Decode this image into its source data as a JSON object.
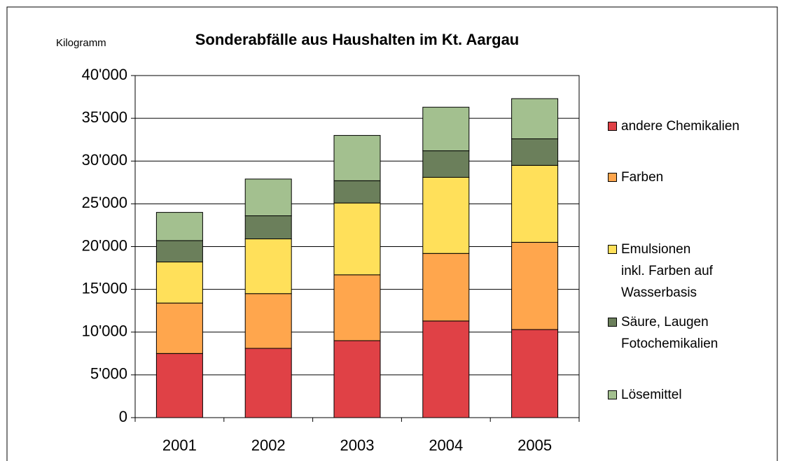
{
  "chart_data": {
    "type": "stacked_bar",
    "title": "Sonderabfälle aus Haushalten im Kt. Aargau",
    "y_label": "Kilogramm",
    "categories": [
      "2001",
      "2002",
      "2003",
      "2004",
      "2005"
    ],
    "series": [
      {
        "name": "andere Chemikalien",
        "color": "#e04146",
        "values": [
          7500,
          8100,
          9000,
          11300,
          10300
        ]
      },
      {
        "name": "Farben",
        "color": "#ffa64d",
        "values": [
          5900,
          6400,
          7700,
          7900,
          10200
        ]
      },
      {
        "name": "Emulsionen\ninkl. Farben auf\nWasserbasis",
        "color": "#ffe05a",
        "values": [
          4800,
          6400,
          8400,
          8900,
          9000
        ]
      },
      {
        "name": "Säure, Laugen\nFotochemikalien",
        "color": "#6b7f5b",
        "values": [
          2500,
          2700,
          2600,
          3100,
          3100
        ]
      },
      {
        "name": "Lösemittel",
        "color": "#a3c08f",
        "values": [
          3300,
          4300,
          5300,
          5100,
          4700
        ]
      }
    ],
    "ylim": [
      0,
      40000
    ],
    "yticks": [
      0,
      {
        "value": 5000,
        "label": "5'000"
      },
      {
        "value": 10000,
        "label": "10'000"
      },
      {
        "value": 15000,
        "label": "15'000"
      },
      {
        "value": 20000,
        "label": "20'000"
      },
      {
        "value": 25000,
        "label": "25'000"
      },
      {
        "value": 30000,
        "label": "30'000"
      },
      {
        "value": 35000,
        "label": "35'000"
      },
      {
        "value": 40000,
        "label": "40'000"
      }
    ],
    "grid": true
  }
}
